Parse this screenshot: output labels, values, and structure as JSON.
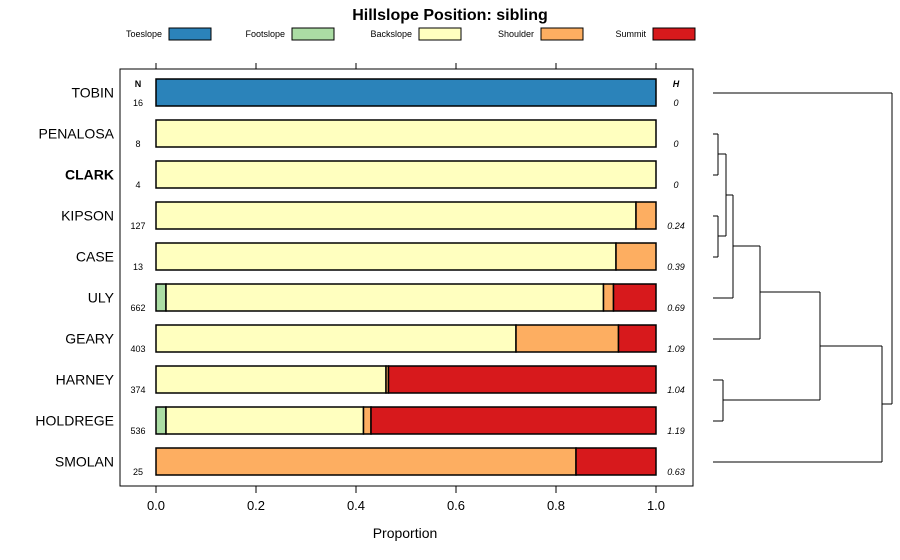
{
  "chart_data": {
    "type": "stacked-bar-horizontal",
    "title": "Hillslope Position: sibling",
    "xlabel": "Proportion",
    "xlim": [
      0,
      1
    ],
    "xticks": [
      "0.0",
      "0.2",
      "0.4",
      "0.6",
      "0.8",
      "1.0"
    ],
    "xtick_values": [
      0,
      0.2,
      0.4,
      0.6,
      0.8,
      1.0
    ],
    "n_header": "N",
    "h_header": "H",
    "legend_position": "top",
    "series": [
      {
        "name": "Toeslope",
        "color": "#2b83ba"
      },
      {
        "name": "Footslope",
        "color": "#abdda4"
      },
      {
        "name": "Backslope",
        "color": "#ffffbf"
      },
      {
        "name": "Shoulder",
        "color": "#fdae61"
      },
      {
        "name": "Summit",
        "color": "#d7191c"
      }
    ],
    "rows": [
      {
        "label": "TOBIN",
        "bold": false,
        "n": "16",
        "h": "0",
        "values": [
          1.0,
          0,
          0,
          0,
          0
        ]
      },
      {
        "label": "PENALOSA",
        "bold": false,
        "n": "8",
        "h": "0",
        "values": [
          0,
          0,
          1.0,
          0,
          0
        ]
      },
      {
        "label": "CLARK",
        "bold": true,
        "n": "4",
        "h": "0",
        "values": [
          0,
          0,
          1.0,
          0,
          0
        ]
      },
      {
        "label": "KIPSON",
        "bold": false,
        "n": "127",
        "h": "0.24",
        "values": [
          0,
          0,
          0.96,
          0.04,
          0
        ]
      },
      {
        "label": "CASE",
        "bold": false,
        "n": "13",
        "h": "0.39",
        "values": [
          0,
          0,
          0.92,
          0.08,
          0
        ]
      },
      {
        "label": "ULY",
        "bold": false,
        "n": "662",
        "h": "0.69",
        "values": [
          0,
          0.02,
          0.875,
          0.02,
          0.085
        ]
      },
      {
        "label": "GEARY",
        "bold": false,
        "n": "403",
        "h": "1.09",
        "values": [
          0,
          0,
          0.72,
          0.205,
          0.075
        ]
      },
      {
        "label": "HARNEY",
        "bold": false,
        "n": "374",
        "h": "1.04",
        "values": [
          0,
          0,
          0.46,
          0.005,
          0.535
        ]
      },
      {
        "label": "HOLDREGE",
        "bold": false,
        "n": "536",
        "h": "1.19",
        "values": [
          0,
          0.02,
          0.395,
          0.015,
          0.57
        ]
      },
      {
        "label": "SMOLAN",
        "bold": false,
        "n": "25",
        "h": "0.63",
        "values": [
          0,
          0,
          0,
          0.84,
          0.16
        ]
      }
    ]
  }
}
